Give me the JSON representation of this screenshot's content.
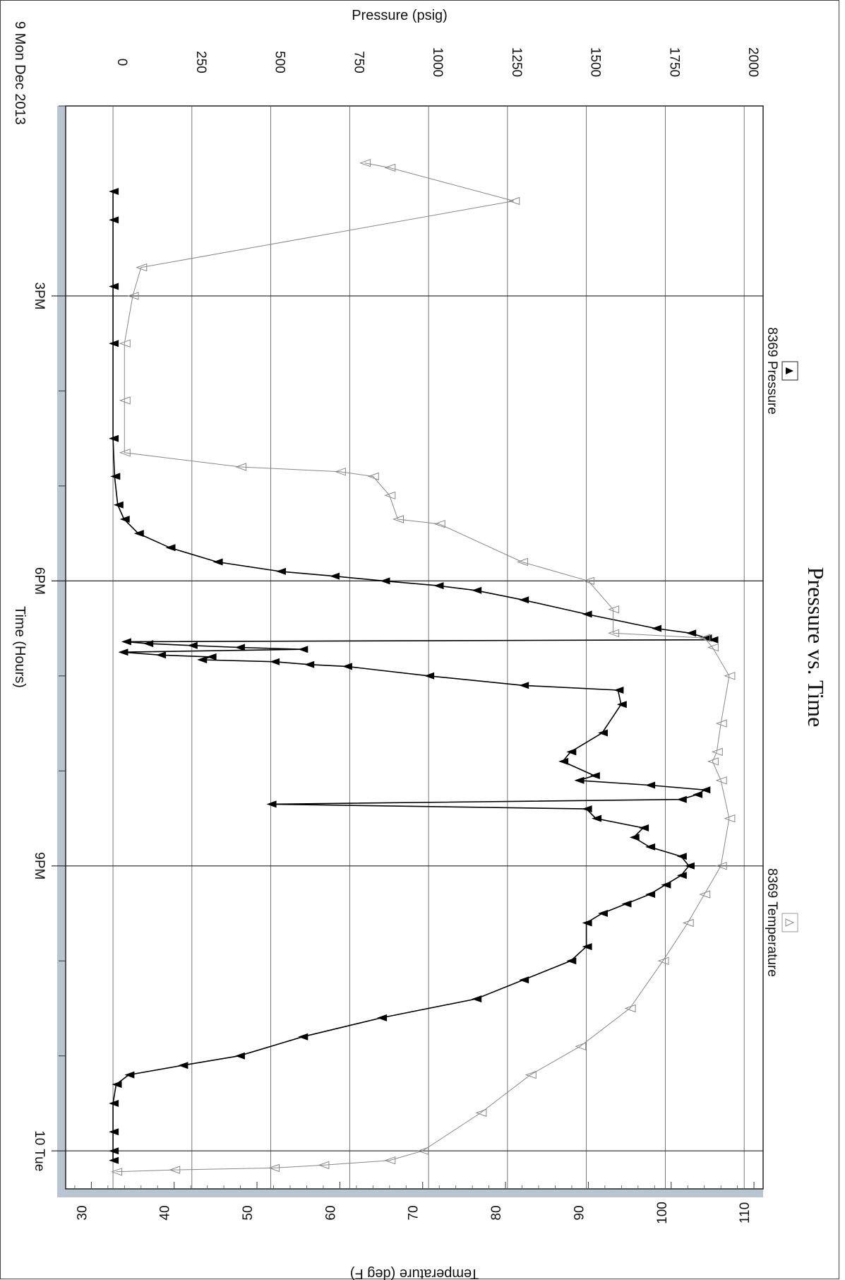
{
  "chart_data": {
    "type": "line",
    "orientation": "rotated-90-clockwise",
    "title": "Pressure vs. Time",
    "date_label": "9 Mon Dec 2013",
    "xlabel": "Time (Hours)",
    "ylabel_left": "Pressure (psig)",
    "ylabel_right": "Temperature (deg F)",
    "x_tick_labels": [
      "3PM",
      "6PM",
      "9PM",
      "10 Tue"
    ],
    "x_major_hours": [
      15,
      18,
      21,
      24
    ],
    "x_minor_hours": [
      13,
      16,
      17,
      19,
      20,
      22,
      23
    ],
    "xlim_hours": [
      13,
      24.4
    ],
    "pressure_ticks": [
      0,
      250,
      500,
      750,
      1000,
      1250,
      1500,
      1750,
      2000
    ],
    "pressure_tick_labels": [
      "0",
      "250",
      "500",
      "750",
      "1000",
      "1250",
      "1500",
      "1750",
      "2000"
    ],
    "pressure_lim": [
      -150,
      2060
    ],
    "temperature_ticks": [
      30,
      40,
      50,
      60,
      70,
      80,
      90,
      100,
      110
    ],
    "temperature_tick_labels": [
      "30",
      "40",
      "50",
      "60",
      "70",
      "80",
      "90",
      "100",
      "110"
    ],
    "temperature_lim": [
      26.9,
      111.1
    ],
    "grid": true,
    "legend_position": "top-and-bottom",
    "series": [
      {
        "name": "8369 Pressure",
        "axis": "pressure",
        "marker": "filled-triangle",
        "color": "#000000",
        "points": [
          [
            13.9,
            0
          ],
          [
            14.2,
            0
          ],
          [
            14.9,
            0
          ],
          [
            15.5,
            0
          ],
          [
            16.5,
            0
          ],
          [
            16.9,
            5
          ],
          [
            17.2,
            15
          ],
          [
            17.35,
            35
          ],
          [
            17.5,
            80
          ],
          [
            17.65,
            180
          ],
          [
            17.8,
            330
          ],
          [
            17.9,
            530
          ],
          [
            17.95,
            700
          ],
          [
            18.0,
            860
          ],
          [
            18.05,
            1030
          ],
          [
            18.1,
            1150
          ],
          [
            18.2,
            1300
          ],
          [
            18.35,
            1500
          ],
          [
            18.5,
            1720
          ],
          [
            18.55,
            1830
          ],
          [
            18.6,
            1880
          ],
          [
            18.62,
            1900
          ],
          [
            18.64,
            40
          ],
          [
            18.66,
            110
          ],
          [
            18.68,
            250
          ],
          [
            18.7,
            400
          ],
          [
            18.72,
            600
          ],
          [
            18.75,
            30
          ],
          [
            18.78,
            150
          ],
          [
            18.8,
            310
          ],
          [
            18.83,
            280
          ],
          [
            18.85,
            510
          ],
          [
            18.88,
            620
          ],
          [
            18.9,
            740
          ],
          [
            19.0,
            1000
          ],
          [
            19.1,
            1300
          ],
          [
            19.15,
            1600
          ],
          [
            19.3,
            1610
          ],
          [
            19.6,
            1550
          ],
          [
            19.8,
            1450
          ],
          [
            19.9,
            1425
          ],
          [
            20.05,
            1525
          ],
          [
            20.1,
            1475
          ],
          [
            20.15,
            1700
          ],
          [
            20.2,
            1875
          ],
          [
            20.25,
            1850
          ],
          [
            20.3,
            1800
          ],
          [
            20.35,
            500
          ],
          [
            20.4,
            1500
          ],
          [
            20.5,
            1530
          ],
          [
            20.6,
            1680
          ],
          [
            20.7,
            1650
          ],
          [
            20.8,
            1700
          ],
          [
            20.9,
            1800
          ],
          [
            21.0,
            1825
          ],
          [
            21.1,
            1800
          ],
          [
            21.2,
            1750
          ],
          [
            21.3,
            1700
          ],
          [
            21.4,
            1625
          ],
          [
            21.5,
            1550
          ],
          [
            21.6,
            1500
          ],
          [
            21.85,
            1500
          ],
          [
            22.0,
            1450
          ],
          [
            22.2,
            1300
          ],
          [
            22.4,
            1150
          ],
          [
            22.6,
            850
          ],
          [
            22.8,
            600
          ],
          [
            23.0,
            400
          ],
          [
            23.1,
            220
          ],
          [
            23.2,
            50
          ],
          [
            23.3,
            10
          ],
          [
            23.5,
            0
          ],
          [
            23.8,
            0
          ],
          [
            24.0,
            0
          ],
          [
            24.1,
            0
          ]
        ]
      },
      {
        "name": "8369 Temperature",
        "axis": "temperature",
        "marker": "open-triangle",
        "color": "#888888",
        "points": [
          [
            13.6,
            63
          ],
          [
            13.65,
            66
          ],
          [
            14.0,
            81
          ],
          [
            14.7,
            36
          ],
          [
            15.0,
            35
          ],
          [
            15.5,
            34
          ],
          [
            16.1,
            34
          ],
          [
            16.65,
            34
          ],
          [
            16.8,
            48
          ],
          [
            16.85,
            60
          ],
          [
            16.9,
            64
          ],
          [
            17.1,
            66
          ],
          [
            17.35,
            67
          ],
          [
            17.4,
            72
          ],
          [
            17.8,
            82
          ],
          [
            18.0,
            90
          ],
          [
            18.3,
            93
          ],
          [
            18.55,
            93
          ],
          [
            18.6,
            104
          ],
          [
            18.7,
            105
          ],
          [
            19.0,
            107
          ],
          [
            19.5,
            106
          ],
          [
            19.8,
            105.5
          ],
          [
            19.9,
            105
          ],
          [
            20.1,
            106
          ],
          [
            20.5,
            107
          ],
          [
            21.0,
            106
          ],
          [
            21.3,
            104
          ],
          [
            21.6,
            102
          ],
          [
            22.0,
            99
          ],
          [
            22.5,
            95
          ],
          [
            22.9,
            89
          ],
          [
            23.2,
            83
          ],
          [
            23.6,
            77
          ],
          [
            24.0,
            70
          ],
          [
            24.1,
            66
          ],
          [
            24.15,
            58
          ],
          [
            24.18,
            52
          ],
          [
            24.2,
            40
          ],
          [
            24.22,
            33
          ]
        ]
      }
    ]
  }
}
